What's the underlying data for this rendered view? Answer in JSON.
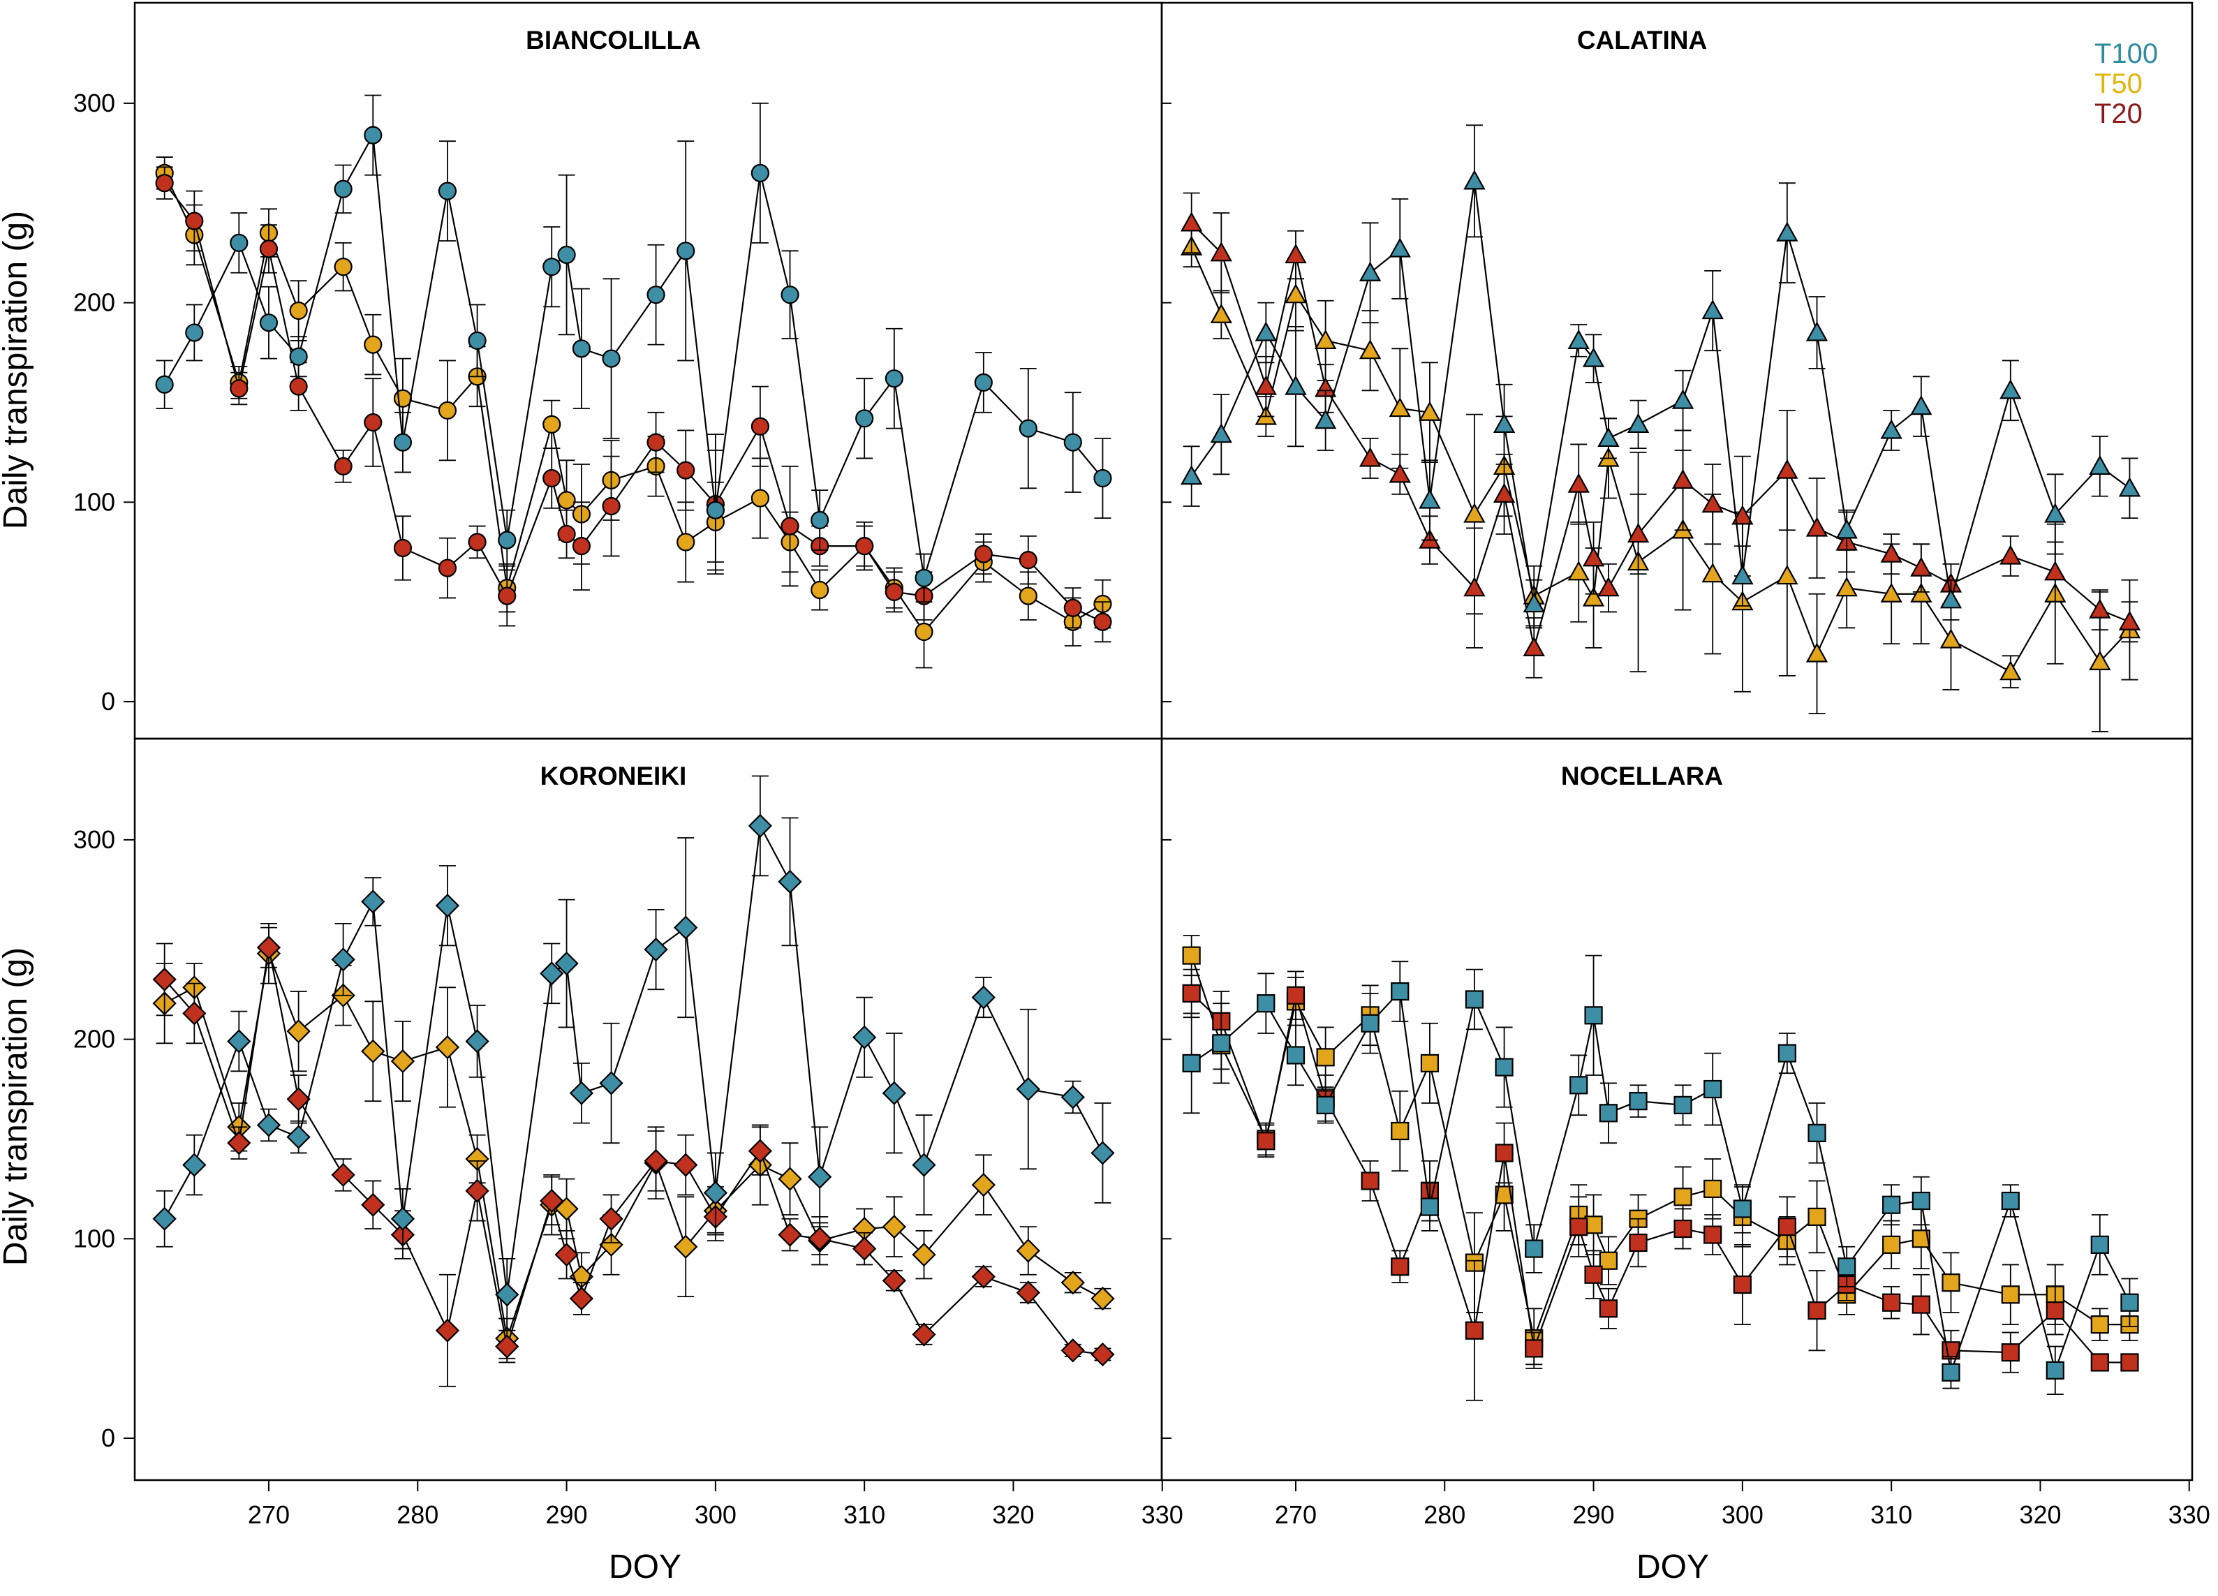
{
  "figure": {
    "ylabel_top": "Daily transpiration (g)",
    "ylabel_bottom": "Daily transpiration (g)",
    "xlabel_left": "DOY",
    "xlabel_right": "DOY"
  },
  "legend": [
    {
      "label": "T100",
      "color": "#2E8C9E"
    },
    {
      "label": "T50",
      "color": "#E3B409"
    },
    {
      "label": "T20",
      "color": "#8B1A1A"
    }
  ],
  "colors": {
    "T100": "#3E8FA6",
    "T50": "#E3A51C",
    "T20": "#C0311E"
  },
  "chart_data": [
    {
      "type": "line",
      "title": "BIANCOLILLA",
      "marker": "circle",
      "xlabel": "DOY",
      "ylabel": "Daily transpiration (g)",
      "xlim": [
        261,
        330
      ],
      "ylim": [
        -35,
        340
      ],
      "xticks": [
        "270",
        "280",
        "290",
        "300",
        "310",
        "320"
      ],
      "yticks": [
        "0",
        "100",
        "200",
        "300"
      ],
      "x": [
        263,
        265,
        268,
        270,
        272,
        275,
        277,
        279,
        282,
        284,
        286,
        289,
        290,
        291,
        293,
        296,
        298,
        300,
        303,
        305,
        307,
        310,
        312,
        314,
        318,
        321,
        324,
        326
      ],
      "series": [
        {
          "name": "T100",
          "values": [
            159,
            185,
            230,
            190,
            173,
            257,
            284,
            130,
            256,
            181,
            81,
            218,
            224,
            177,
            172,
            204,
            226,
            96,
            265,
            204,
            91,
            142,
            162,
            62,
            160,
            137,
            130,
            112
          ],
          "errors": [
            12,
            14,
            15,
            18,
            10,
            12,
            20,
            15,
            25,
            18,
            15,
            20,
            40,
            30,
            40,
            25,
            55,
            30,
            35,
            22,
            15,
            20,
            25,
            12,
            15,
            30,
            25,
            20
          ]
        },
        {
          "name": "T50",
          "values": [
            265,
            234,
            160,
            235,
            196,
            218,
            179,
            152,
            146,
            163,
            57,
            139,
            101,
            94,
            111,
            118,
            80,
            90,
            102,
            80,
            56,
            78,
            57,
            35,
            70,
            53,
            40,
            49
          ],
          "errors": [
            8,
            15,
            8,
            12,
            15,
            12,
            15,
            20,
            25,
            15,
            12,
            12,
            20,
            25,
            20,
            15,
            20,
            20,
            20,
            15,
            10,
            12,
            10,
            18,
            10,
            12,
            12,
            12
          ]
        },
        {
          "name": "T20",
          "values": [
            260,
            241,
            157,
            227,
            158,
            118,
            140,
            77,
            67,
            80,
            53,
            112,
            84,
            78,
            98,
            130,
            116,
            99,
            138,
            88,
            78,
            78,
            55,
            53,
            74,
            71,
            47,
            40
          ],
          "errors": [
            8,
            15,
            8,
            12,
            12,
            8,
            22,
            16,
            15,
            8,
            15,
            15,
            12,
            22,
            25,
            15,
            20,
            35,
            20,
            30,
            10,
            10,
            10,
            12,
            10,
            12,
            10,
            10
          ]
        }
      ]
    },
    {
      "type": "line",
      "title": "CALATINA",
      "marker": "triangle",
      "xlabel": "DOY",
      "ylabel": "",
      "xlim": [
        261,
        330
      ],
      "ylim": [
        -35,
        340
      ],
      "xticks": [
        "270",
        "280",
        "290",
        "300",
        "310",
        "320"
      ],
      "yticks": [],
      "x": [
        263,
        265,
        268,
        270,
        272,
        275,
        277,
        279,
        282,
        284,
        286,
        289,
        290,
        291,
        293,
        296,
        298,
        300,
        303,
        305,
        307,
        310,
        312,
        314,
        318,
        321,
        324,
        326
      ],
      "series": [
        {
          "name": "T100",
          "values": [
            113,
            134,
            185,
            158,
            141,
            215,
            227,
            101,
            261,
            139,
            49,
            181,
            172,
            132,
            139,
            151,
            196,
            63,
            235,
            185,
            86,
            136,
            148,
            51,
            156,
            94,
            118,
            107
          ],
          "errors": [
            15,
            20,
            15,
            30,
            15,
            25,
            25,
            20,
            28,
            20,
            12,
            8,
            12,
            10,
            12,
            15,
            20,
            15,
            25,
            18,
            10,
            10,
            15,
            10,
            15,
            20,
            15,
            15
          ]
        },
        {
          "name": "T50",
          "values": [
            228,
            194,
            143,
            204,
            181,
            176,
            147,
            145,
            94,
            118,
            53,
            65,
            52,
            122,
            70,
            86,
            64,
            50,
            63,
            24,
            57,
            54,
            54,
            31,
            15,
            54,
            20,
            36
          ]
        },
        {
          "name": "T20",
          "values": [
            240,
            225,
            158,
            224,
            157,
            122,
            114,
            81,
            57,
            104,
            27,
            109,
            72,
            57,
            84,
            111,
            99,
            93,
            116,
            87,
            80,
            74,
            67,
            59,
            73,
            65,
            46,
            40
          ],
          "errors": [
            15,
            20,
            15,
            12,
            12,
            10,
            10,
            12,
            30,
            20,
            15,
            20,
            18,
            12,
            20,
            25,
            20,
            30,
            30,
            25,
            15,
            10,
            12,
            10,
            10,
            15,
            10,
            10
          ]
        }
      ],
      "t50_errors": [
        10,
        12,
        10,
        18,
        20,
        20,
        30,
        25,
        50,
        25,
        15,
        25,
        25,
        20,
        55,
        40,
        40,
        45,
        50,
        30,
        20,
        25,
        25,
        25,
        8,
        35,
        35,
        25
      ]
    },
    {
      "type": "line",
      "title": "KORONEIKI",
      "marker": "diamond",
      "xlabel": "DOY",
      "ylabel": "Daily transpiration (g)",
      "xlim": [
        261,
        330
      ],
      "ylim": [
        -35,
        340
      ],
      "xticks": [
        "270",
        "280",
        "290",
        "300",
        "310",
        "320"
      ],
      "yticks": [
        "0",
        "100",
        "200",
        "300"
      ],
      "x": [
        263,
        265,
        268,
        270,
        272,
        275,
        277,
        279,
        282,
        284,
        286,
        289,
        290,
        291,
        293,
        296,
        298,
        300,
        303,
        305,
        307,
        310,
        312,
        314,
        318,
        321,
        324,
        326
      ],
      "series": [
        {
          "name": "T100",
          "values": [
            110,
            137,
            199,
            157,
            151,
            240,
            269,
            110,
            267,
            199,
            72,
            233,
            238,
            173,
            178,
            245,
            256,
            123,
            307,
            279,
            131,
            201,
            173,
            137,
            221,
            175,
            171,
            143
          ],
          "errors": [
            14,
            15,
            15,
            8,
            8,
            18,
            12,
            15,
            20,
            18,
            18,
            15,
            32,
            15,
            30,
            20,
            45,
            20,
            25,
            32,
            25,
            20,
            30,
            25,
            10,
            40,
            8,
            25
          ]
        },
        {
          "name": "T50",
          "values": [
            218,
            226,
            156,
            243,
            204,
            222,
            194,
            189,
            196,
            140,
            50,
            117,
            115,
            81,
            97,
            138,
            96,
            114,
            137,
            130,
            99,
            105,
            106,
            92,
            127,
            94,
            78,
            70
          ],
          "errors": [
            20,
            12,
            12,
            15,
            20,
            15,
            25,
            20,
            30,
            12,
            10,
            15,
            15,
            12,
            15,
            18,
            25,
            12,
            20,
            18,
            12,
            10,
            15,
            12,
            15,
            12,
            5,
            5
          ]
        },
        {
          "name": "T20",
          "values": [
            230,
            213,
            148,
            246,
            170,
            132,
            117,
            102,
            54,
            124,
            46,
            119,
            92,
            70,
            110,
            139,
            137,
            111,
            144,
            102,
            100,
            95,
            79,
            52,
            81,
            73,
            44,
            42
          ],
          "errors": [
            18,
            15,
            8,
            10,
            12,
            8,
            12,
            12,
            28,
            15,
            8,
            12,
            12,
            8,
            12,
            15,
            15,
            12,
            12,
            8,
            8,
            8,
            5,
            5,
            5,
            5,
            3,
            3
          ]
        }
      ]
    },
    {
      "type": "line",
      "title": "NOCELLARA",
      "marker": "square",
      "xlabel": "DOY",
      "ylabel": "",
      "xlim": [
        261,
        330
      ],
      "ylim": [
        -35,
        340
      ],
      "xticks": [
        "270",
        "280",
        "290",
        "300",
        "310",
        "320"
      ],
      "yticks": [],
      "x": [
        263,
        265,
        268,
        270,
        272,
        275,
        277,
        279,
        282,
        284,
        286,
        289,
        290,
        291,
        293,
        296,
        298,
        300,
        303,
        305,
        307,
        310,
        312,
        314,
        318,
        321,
        324,
        326
      ],
      "series": [
        {
          "name": "T100",
          "values": [
            188,
            198,
            218,
            192,
            167,
            208,
            224,
            116,
            220,
            186,
            95,
            177,
            212,
            163,
            169,
            167,
            175,
            115,
            193,
            153,
            86,
            117,
            119,
            33,
            119,
            34,
            97,
            68
          ],
          "errors": [
            25,
            20,
            15,
            15,
            8,
            15,
            15,
            12,
            15,
            20,
            12,
            15,
            30,
            15,
            8,
            10,
            18,
            12,
            10,
            15,
            10,
            10,
            12,
            8,
            8,
            12,
            15,
            12
          ]
        },
        {
          "name": "T50",
          "values": [
            242,
            197,
            150,
            219,
            191,
            212,
            154,
            188,
            88,
            122,
            50,
            112,
            107,
            89,
            110,
            121,
            125,
            111,
            99,
            111,
            72,
            97,
            100,
            78,
            72,
            72,
            57,
            57
          ],
          "errors": [
            10,
            12,
            8,
            12,
            15,
            15,
            20,
            20,
            25,
            18,
            15,
            15,
            15,
            12,
            12,
            15,
            15,
            15,
            12,
            18,
            10,
            12,
            15,
            15,
            15,
            15,
            8,
            8
          ]
        },
        {
          "name": "T20",
          "values": [
            223,
            209,
            149,
            222,
            170,
            129,
            86,
            124,
            54,
            143,
            45,
            106,
            82,
            65,
            98,
            105,
            102,
            77,
            106,
            64,
            77,
            68,
            67,
            44,
            43,
            64,
            38,
            38
          ],
          "errors": [
            12,
            15,
            8,
            12,
            12,
            10,
            8,
            15,
            35,
            15,
            8,
            15,
            12,
            10,
            12,
            10,
            10,
            20,
            15,
            20,
            8,
            8,
            15,
            10,
            10,
            12,
            3,
            3
          ]
        }
      ]
    }
  ]
}
